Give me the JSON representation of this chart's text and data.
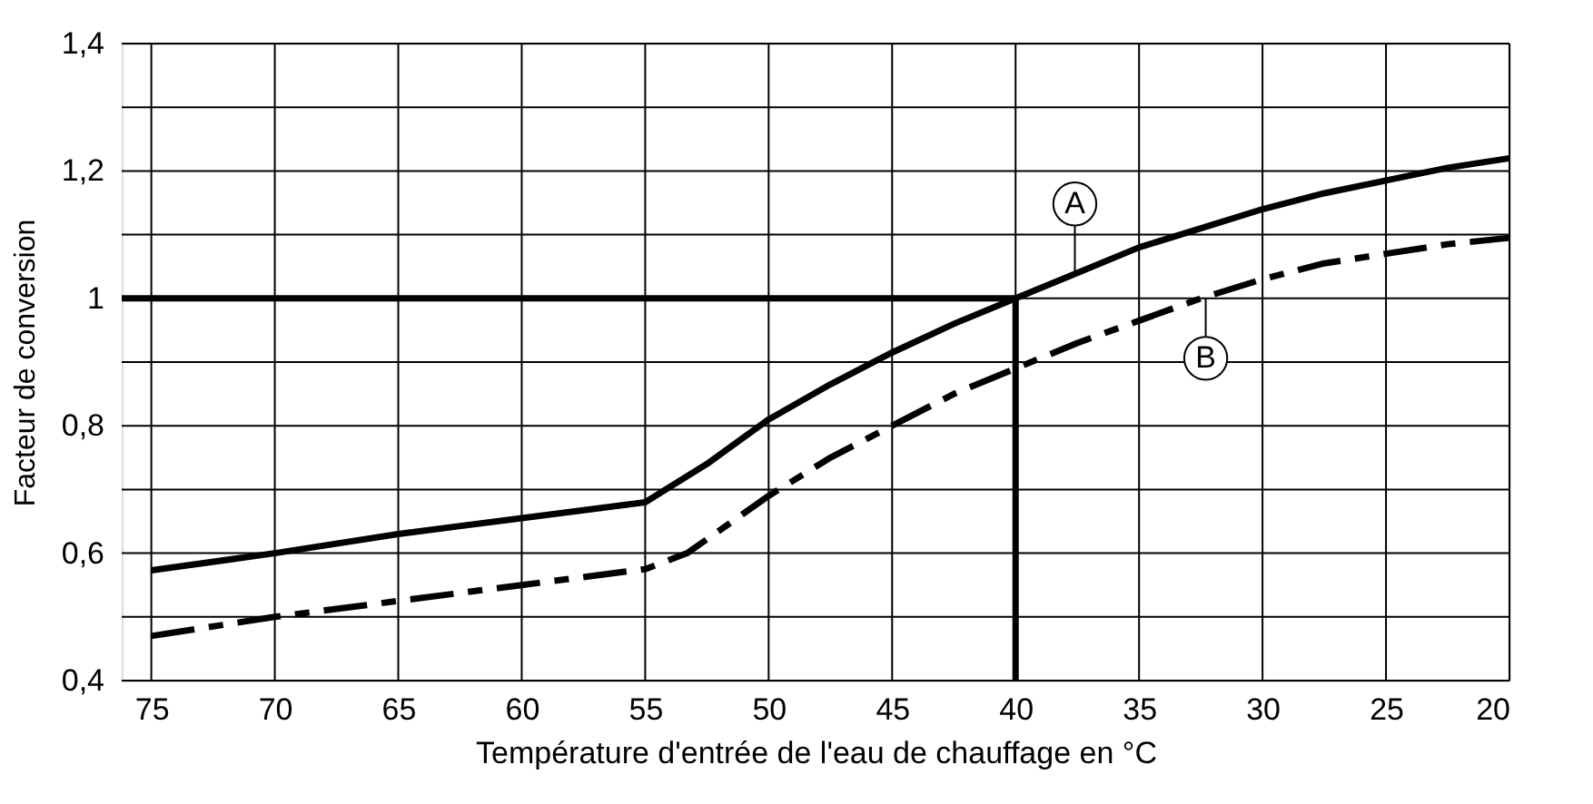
{
  "chart_data": {
    "type": "line",
    "xlabel": "Température d'entrée de l'eau de chauffage en °C",
    "ylabel": "Facteur de conversion",
    "xlim": [
      76.2,
      20
    ],
    "xticks": [
      75,
      70,
      65,
      60,
      55,
      50,
      45,
      40,
      35,
      30,
      25,
      20
    ],
    "ylim": [
      0.4,
      1.4
    ],
    "yticks": [
      {
        "value": 0.4,
        "label": "0,4"
      },
      {
        "value": 0.5,
        "label": null
      },
      {
        "value": 0.6,
        "label": "0,6"
      },
      {
        "value": 0.7,
        "label": null
      },
      {
        "value": 0.8,
        "label": "0,8"
      },
      {
        "value": 0.9,
        "label": null
      },
      {
        "value": 1,
        "label": "1"
      },
      {
        "value": 1.1,
        "label": null
      },
      {
        "value": 1.2,
        "label": "1,2"
      },
      {
        "value": 1.3,
        "label": null
      },
      {
        "value": 1.4,
        "label": "1,4"
      }
    ],
    "grid": true,
    "marker": "none",
    "series": [
      {
        "color": "#000000",
        "line_style": "solid",
        "x": [
          75,
          70,
          65,
          60,
          55,
          52.5,
          50,
          47.5,
          45,
          42.5,
          40,
          37.5,
          35,
          32.5,
          30,
          27.5,
          25,
          22.5,
          20
        ],
        "values": [
          0.573,
          0.6,
          0.63,
          0.655,
          0.68,
          0.74,
          0.81,
          0.865,
          0.915,
          0.96,
          1.0,
          1.04,
          1.08,
          1.11,
          1.14,
          1.165,
          1.185,
          1.205,
          1.22
        ]
      },
      {
        "color": "#000000",
        "line_style": "dashed",
        "x": [
          75,
          70,
          65,
          60,
          55,
          53.3,
          50,
          47.5,
          45,
          42.5,
          40,
          37.5,
          35,
          32.5,
          30,
          27.5,
          25,
          22.5,
          20
        ],
        "values": [
          0.47,
          0.5,
          0.525,
          0.55,
          0.575,
          0.6,
          0.69,
          0.75,
          0.8,
          0.85,
          0.89,
          0.93,
          0.965,
          1.0,
          1.03,
          1.055,
          1.07,
          1.085,
          1.095
        ]
      },
      {
        "color": "#000000",
        "line_style": "solid",
        "x": [
          76.2,
          40,
          40
        ],
        "values": [
          1,
          1,
          0.4
        ]
      }
    ],
    "annotations": [
      {
        "text": "A",
        "x": 37.6,
        "y": 1.04
      },
      {
        "text": "B",
        "x": 32.3,
        "y": 1.0
      }
    ]
  }
}
